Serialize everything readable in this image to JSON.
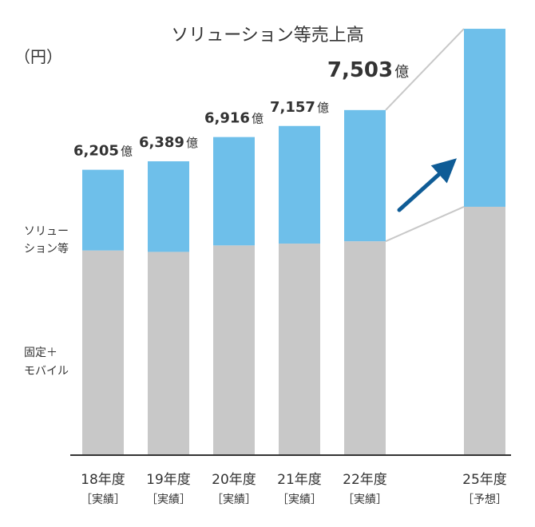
{
  "chart_data": {
    "type": "bar",
    "stacked": true,
    "title": "ソリューション等売上高",
    "unit_label": "（円）",
    "categories": [
      "18年度",
      "19年度",
      "20年度",
      "21年度",
      "22年度",
      "25年度"
    ],
    "category_notes": [
      "［実績］",
      "［実績］",
      "［実績］",
      "［実績］",
      "［実績］",
      "［予想］"
    ],
    "totals": [
      6205,
      6389,
      6916,
      7157,
      7503,
      null
    ],
    "total_labels": [
      {
        "num": "6,205",
        "unit": "億"
      },
      {
        "num": "6,389",
        "unit": "億"
      },
      {
        "num": "6,916",
        "unit": "億"
      },
      {
        "num": "7,157",
        "unit": "億"
      },
      {
        "num": "7,503",
        "unit": "億"
      },
      {
        "num": "",
        "unit": ""
      }
    ],
    "series": [
      {
        "name": "固定＋モバイル",
        "name_lines": [
          "固定＋",
          "モバイル"
        ],
        "color": "#c8c8c8",
        "values": [
          4450,
          4420,
          4560,
          4600,
          4650,
          5400
        ]
      },
      {
        "name": "ソリューション等",
        "name_lines": [
          "ソリュー",
          "ション等"
        ],
        "color": "#6ebfea",
        "values": [
          1755,
          1969,
          2356,
          2557,
          2853,
          3870
        ]
      }
    ],
    "trend_arrow": {
      "color": "#0f5c96",
      "direction": "up-right"
    },
    "grid": false,
    "legend": "left inline labels",
    "axis_color": "#333333"
  }
}
